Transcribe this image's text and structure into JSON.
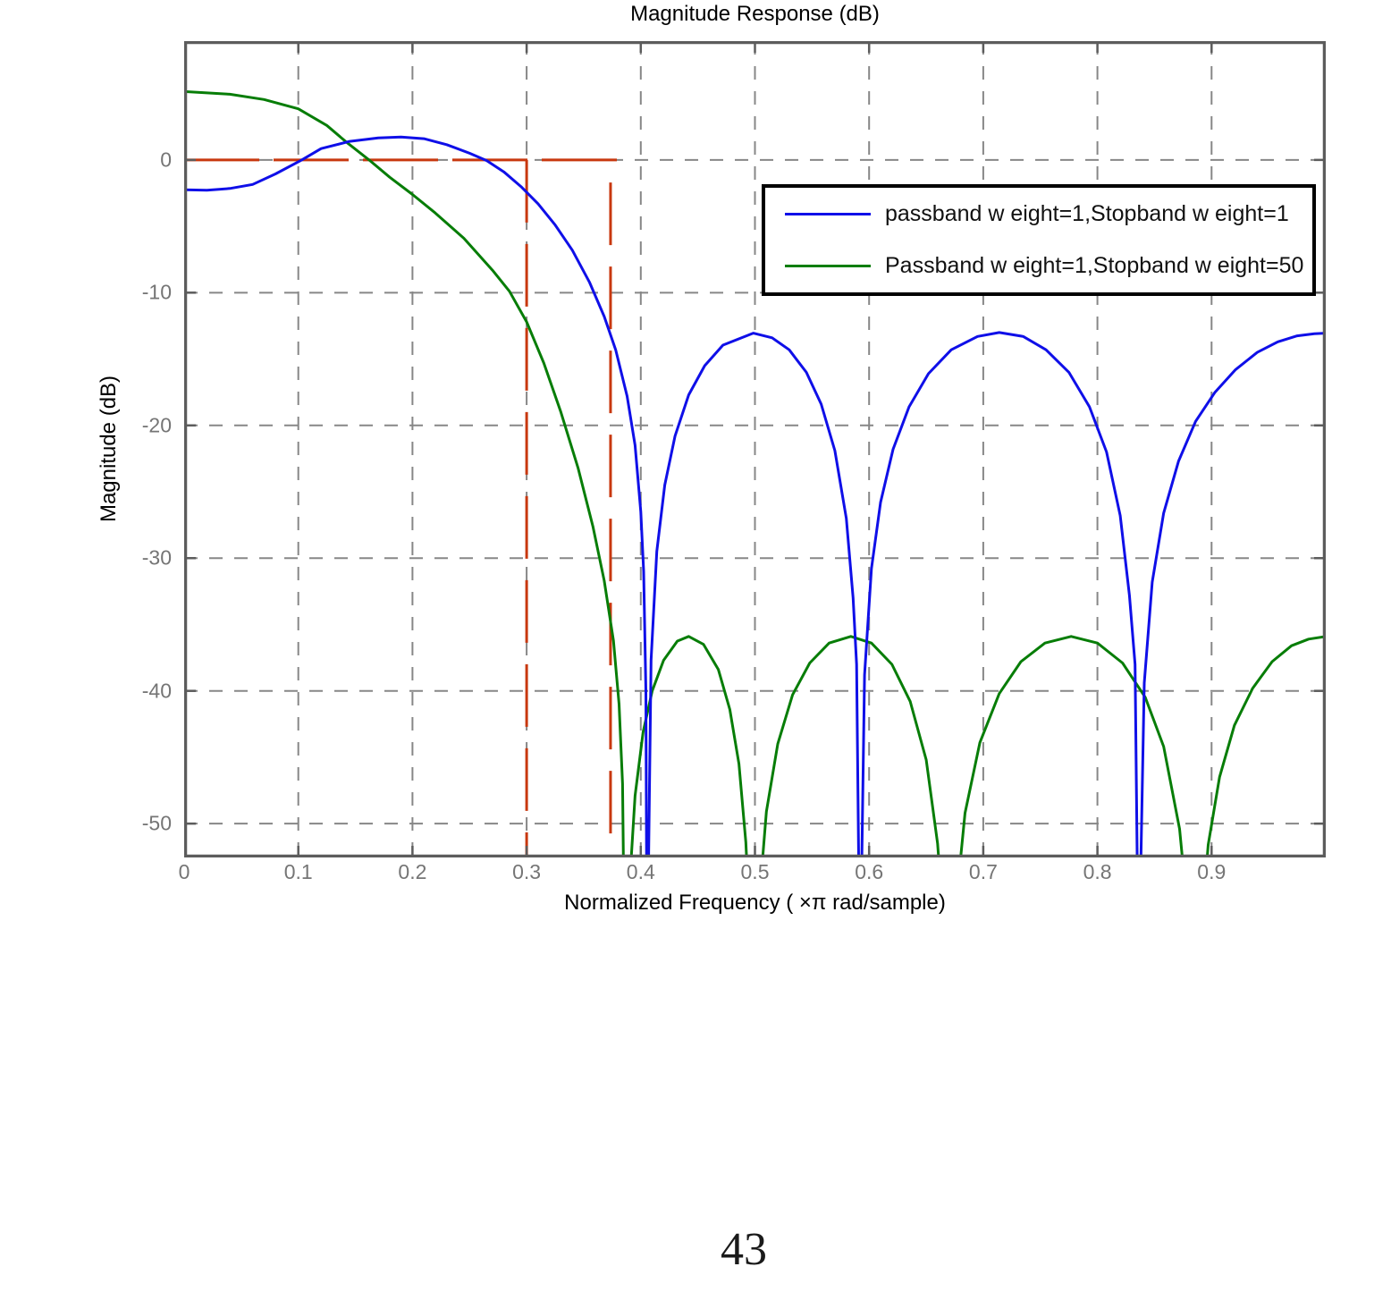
{
  "page": {
    "number": "43"
  },
  "chart_data": {
    "type": "line",
    "title": "Magnitude Response (dB)",
    "xlabel": "Normalized Frequency ( ×π rad/sample)",
    "ylabel": "Magnitude (dB)",
    "xlim": [
      0,
      1
    ],
    "ylim": [
      -52.55,
      8.95
    ],
    "grid": true,
    "legend_position": "upper right",
    "xticks": [
      {
        "v": 0,
        "label": "0"
      },
      {
        "v": 0.1,
        "label": "0.1"
      },
      {
        "v": 0.2,
        "label": "0.2"
      },
      {
        "v": 0.3,
        "label": "0.3"
      },
      {
        "v": 0.4,
        "label": "0.4"
      },
      {
        "v": 0.5,
        "label": "0.5"
      },
      {
        "v": 0.6,
        "label": "0.6"
      },
      {
        "v": 0.7,
        "label": "0.7"
      },
      {
        "v": 0.8,
        "label": "0.8"
      },
      {
        "v": 0.9,
        "label": "0.9"
      }
    ],
    "yticks": [
      {
        "v": 0,
        "label": "0"
      },
      {
        "v": -10,
        "label": "-10"
      },
      {
        "v": -20,
        "label": "-20"
      },
      {
        "v": -30,
        "label": "-30"
      },
      {
        "v": -40,
        "label": "-40"
      },
      {
        "v": -50,
        "label": "-50"
      }
    ],
    "colors": {
      "grid": "#878787",
      "axis": "#5c5c5c",
      "tick_label": "#757575",
      "mask": "#c8380f",
      "series_blue": "#0f0fe8",
      "series_green": "#077d07"
    },
    "mask_lines": {
      "description": "red dashed design-spec lines: 0 dB passband level, passband edge 0.3, stopband edge 0.3735",
      "segments": [
        {
          "x1": 0,
          "y1": 0,
          "x2": 0.381,
          "y2": 0
        },
        {
          "x1": 0.3,
          "y1": 0,
          "x2": 0.3,
          "y2": -52.55
        },
        {
          "x1": 0.3735,
          "y1": -1.7,
          "x2": 0.3735,
          "y2": -52.55
        }
      ]
    },
    "series": [
      {
        "name": "passband w eight=1,Stopband w eight=1",
        "color": "#0f0fe8",
        "points": [
          [
            0,
            -2.25
          ],
          [
            0.02,
            -2.28
          ],
          [
            0.04,
            -2.15
          ],
          [
            0.06,
            -1.85
          ],
          [
            0.08,
            -1.05
          ],
          [
            0.103,
            0
          ],
          [
            0.12,
            0.85
          ],
          [
            0.145,
            1.4
          ],
          [
            0.17,
            1.66
          ],
          [
            0.19,
            1.72
          ],
          [
            0.21,
            1.6
          ],
          [
            0.23,
            1.15
          ],
          [
            0.25,
            0.5
          ],
          [
            0.265,
            -0.05
          ],
          [
            0.28,
            -0.9
          ],
          [
            0.295,
            -2.0
          ],
          [
            0.31,
            -3.3
          ],
          [
            0.325,
            -4.9
          ],
          [
            0.34,
            -6.8
          ],
          [
            0.355,
            -9.2
          ],
          [
            0.368,
            -11.8
          ],
          [
            0.378,
            -14.3
          ],
          [
            0.388,
            -17.8
          ],
          [
            0.395,
            -21.5
          ],
          [
            0.4,
            -26.5
          ],
          [
            0.4025,
            -31
          ],
          [
            0.4045,
            -40
          ],
          [
            0.4055,
            -62
          ],
          [
            0.409,
            -37.7
          ],
          [
            0.414,
            -29.5
          ],
          [
            0.421,
            -24.5
          ],
          [
            0.43,
            -20.8
          ],
          [
            0.442,
            -17.7
          ],
          [
            0.456,
            -15.5
          ],
          [
            0.472,
            -13.95
          ],
          [
            0.4985,
            -13.05
          ],
          [
            0.515,
            -13.4
          ],
          [
            0.53,
            -14.3
          ],
          [
            0.545,
            -16.0
          ],
          [
            0.558,
            -18.4
          ],
          [
            0.57,
            -21.9
          ],
          [
            0.58,
            -27.0
          ],
          [
            0.586,
            -33
          ],
          [
            0.589,
            -38
          ],
          [
            0.592,
            -62
          ],
          [
            0.596,
            -38.8
          ],
          [
            0.602,
            -30.8
          ],
          [
            0.61,
            -25.8
          ],
          [
            0.621,
            -21.8
          ],
          [
            0.635,
            -18.6
          ],
          [
            0.652,
            -16.1
          ],
          [
            0.672,
            -14.3
          ],
          [
            0.695,
            -13.3
          ],
          [
            0.714,
            -13.0
          ],
          [
            0.735,
            -13.3
          ],
          [
            0.755,
            -14.3
          ],
          [
            0.775,
            -16.0
          ],
          [
            0.793,
            -18.6
          ],
          [
            0.808,
            -22.0
          ],
          [
            0.82,
            -26.8
          ],
          [
            0.828,
            -32.8
          ],
          [
            0.833,
            -38
          ],
          [
            0.836,
            -62
          ],
          [
            0.841,
            -39.4
          ],
          [
            0.848,
            -31.8
          ],
          [
            0.858,
            -26.6
          ],
          [
            0.871,
            -22.7
          ],
          [
            0.886,
            -19.7
          ],
          [
            0.903,
            -17.5
          ],
          [
            0.921,
            -15.8
          ],
          [
            0.94,
            -14.5
          ],
          [
            0.958,
            -13.7
          ],
          [
            0.975,
            -13.25
          ],
          [
            0.99,
            -13.1
          ],
          [
            1,
            -13.05
          ]
        ]
      },
      {
        "name": "Passband w eight=1,Stopband w eight=50",
        "color": "#077d07",
        "points": [
          [
            0,
            5.15
          ],
          [
            0.04,
            4.95
          ],
          [
            0.07,
            4.55
          ],
          [
            0.1,
            3.85
          ],
          [
            0.125,
            2.6
          ],
          [
            0.142,
            1.35
          ],
          [
            0.162,
            0
          ],
          [
            0.18,
            -1.3
          ],
          [
            0.2,
            -2.6
          ],
          [
            0.22,
            -4.0
          ],
          [
            0.245,
            -5.9
          ],
          [
            0.27,
            -8.3
          ],
          [
            0.285,
            -9.9
          ],
          [
            0.3,
            -12.2
          ],
          [
            0.315,
            -15.3
          ],
          [
            0.33,
            -19.0
          ],
          [
            0.345,
            -23.2
          ],
          [
            0.358,
            -27.6
          ],
          [
            0.368,
            -31.7
          ],
          [
            0.376,
            -36.2
          ],
          [
            0.381,
            -41
          ],
          [
            0.384,
            -47
          ],
          [
            0.386,
            -62
          ],
          [
            0.39,
            -54.9
          ],
          [
            0.395,
            -47.9
          ],
          [
            0.402,
            -43.1
          ],
          [
            0.41,
            -40.0
          ],
          [
            0.42,
            -37.7
          ],
          [
            0.432,
            -36.25
          ],
          [
            0.442,
            -35.9
          ],
          [
            0.455,
            -36.5
          ],
          [
            0.468,
            -38.4
          ],
          [
            0.478,
            -41.4
          ],
          [
            0.486,
            -45.5
          ],
          [
            0.492,
            -51.4
          ],
          [
            0.498,
            -62
          ],
          [
            0.503,
            -56.6
          ],
          [
            0.51,
            -49.1
          ],
          [
            0.52,
            -44.0
          ],
          [
            0.533,
            -40.3
          ],
          [
            0.548,
            -37.9
          ],
          [
            0.565,
            -36.4
          ],
          [
            0.584,
            -35.9
          ],
          [
            0.602,
            -36.4
          ],
          [
            0.62,
            -38.0
          ],
          [
            0.636,
            -40.8
          ],
          [
            0.65,
            -45.2
          ],
          [
            0.66,
            -51.5
          ],
          [
            0.669,
            -62
          ],
          [
            0.675,
            -57.1
          ],
          [
            0.684,
            -49.2
          ],
          [
            0.697,
            -43.9
          ],
          [
            0.714,
            -40.2
          ],
          [
            0.733,
            -37.8
          ],
          [
            0.754,
            -36.4
          ],
          [
            0.777,
            -35.9
          ],
          [
            0.8,
            -36.4
          ],
          [
            0.822,
            -37.9
          ],
          [
            0.842,
            -40.5
          ],
          [
            0.858,
            -44.2
          ],
          [
            0.872,
            -50.4
          ],
          [
            0.885,
            -62
          ],
          [
            0.89,
            -59.2
          ],
          [
            0.897,
            -51.6
          ],
          [
            0.907,
            -46.5
          ],
          [
            0.92,
            -42.6
          ],
          [
            0.936,
            -39.8
          ],
          [
            0.953,
            -37.8
          ],
          [
            0.97,
            -36.6
          ],
          [
            0.985,
            -36.1
          ],
          [
            1,
            -35.9
          ]
        ]
      }
    ]
  }
}
